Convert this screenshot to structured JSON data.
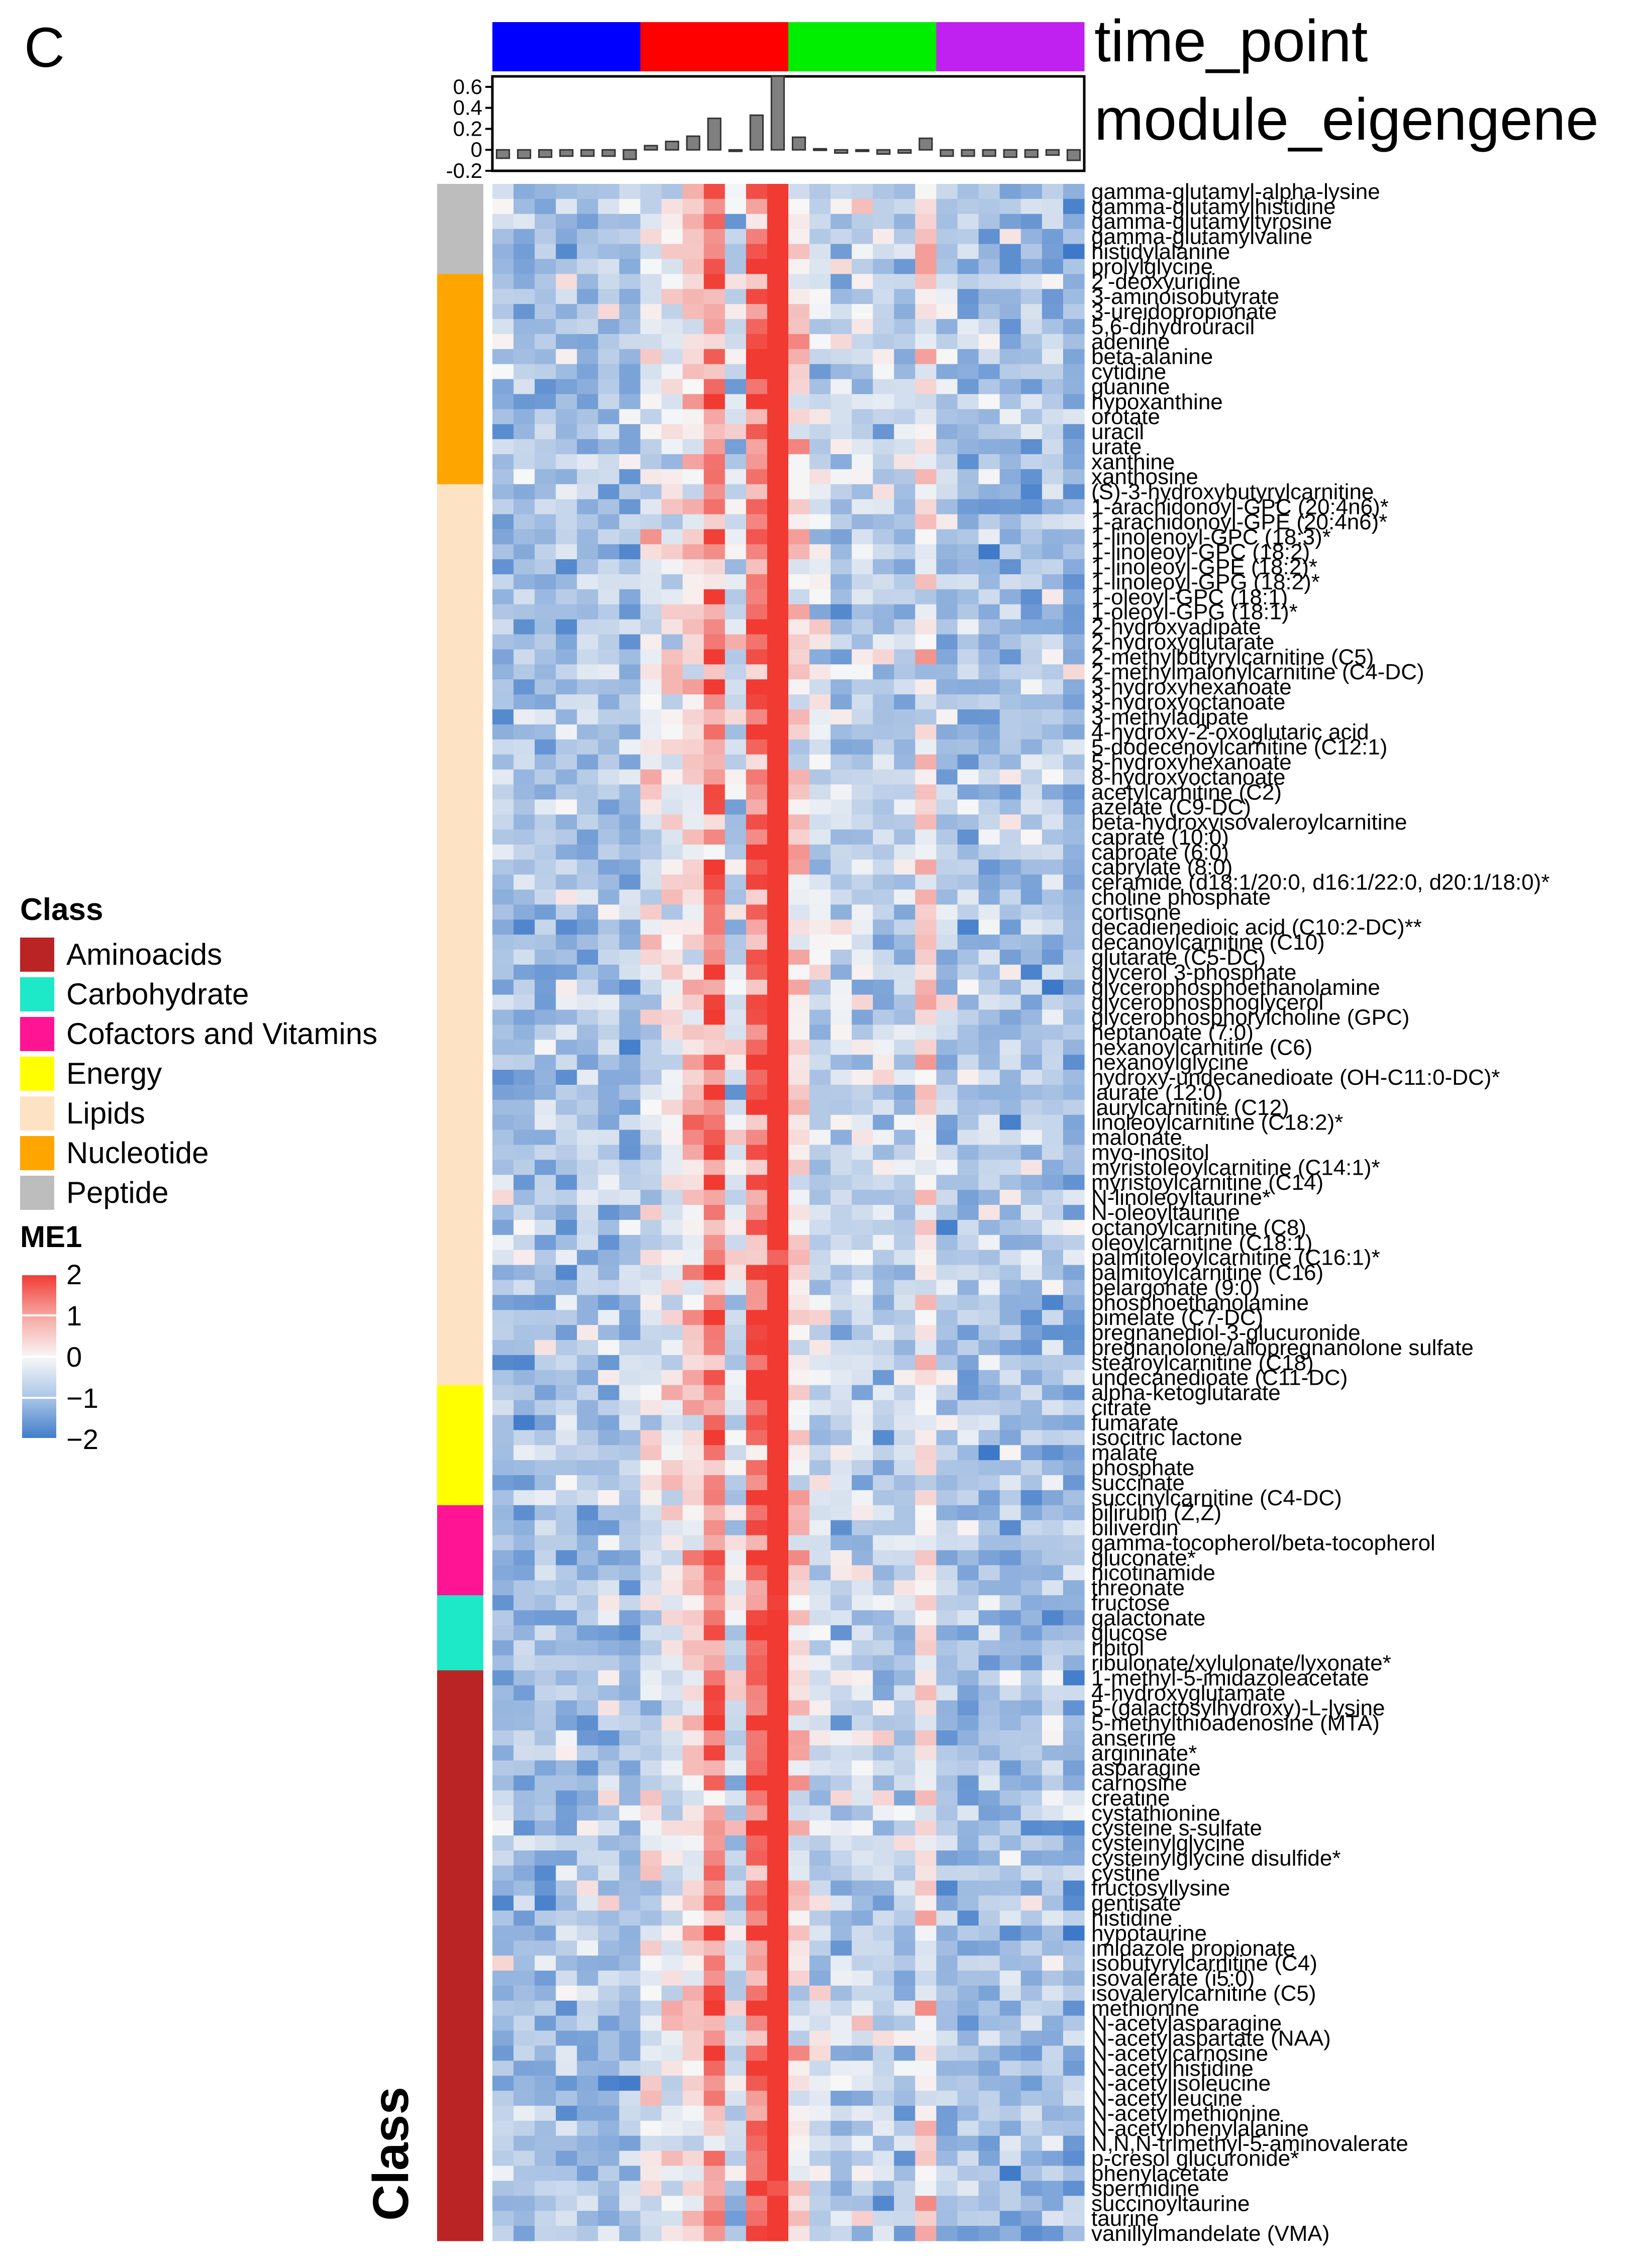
{
  "panel_label": "C",
  "legend": {
    "title": "Class",
    "items": [
      {
        "label": "Aminoacids",
        "color": "#bb2424"
      },
      {
        "label": "Carbohydrate",
        "color": "#1de8c8"
      },
      {
        "label": "Cofactors and Vitamins",
        "color": "#ff1493"
      },
      {
        "label": "Energy",
        "color": "#ffff00"
      },
      {
        "label": "Lipids",
        "color": "#fde3c4"
      },
      {
        "label": "Nucleotide",
        "color": "#ffa500"
      },
      {
        "label": "Peptide",
        "color": "#bdbdbd"
      }
    ],
    "scale_title": "ME1",
    "scale_ticks": [
      "2",
      "1",
      "0",
      "−1",
      "−2"
    ]
  },
  "chart_data": {
    "type": "heatmap",
    "column_annotation": {
      "label": "time_point",
      "groups": [
        {
          "color": "#0000ff",
          "n": 7
        },
        {
          "color": "#ff0000",
          "n": 7
        },
        {
          "color": "#00ee00",
          "n": 7
        },
        {
          "color": "#c020f0",
          "n": 7
        }
      ]
    },
    "eigengene": {
      "label": "module_eigengene",
      "ticks": [
        "0.6",
        "0.4",
        "0.2",
        "0",
        "-0.2"
      ],
      "ylim": [
        -0.2,
        0.7
      ],
      "values": [
        -0.08,
        -0.08,
        -0.07,
        -0.06,
        -0.06,
        -0.06,
        -0.09,
        0.04,
        0.08,
        0.13,
        0.3,
        0.0,
        0.33,
        0.7,
        0.12,
        0.01,
        -0.03,
        0.0,
        -0.04,
        -0.03,
        0.11,
        -0.06,
        -0.06,
        -0.06,
        -0.07,
        -0.07,
        -0.05,
        -0.1
      ]
    },
    "row_annotation_label": "Class",
    "color_scale": {
      "min": -2,
      "max": 2,
      "low": "#3d79c8",
      "mid": "#f7f7f7",
      "high": "#f03a32"
    },
    "row_groups": [
      {
        "class": "Peptide",
        "rows": [
          "gamma-glutamyl-alpha-lysine",
          "gamma-glutamylhistidine",
          "gamma-glutamyltyrosine",
          "gamma-glutamylvaline",
          "histidylalanine",
          "prolylglycine"
        ]
      },
      {
        "class": "Nucleotide",
        "rows": [
          "2'-deoxyuridine",
          "3-aminoisobutyrate",
          "3-ureidopropionate",
          "5,6-dihydrouracil",
          "adenine",
          "beta-alanine",
          "cytidine",
          "guanine",
          "hypoxanthine",
          "orotate",
          "uracil",
          "urate",
          "xanthine",
          "xanthosine"
        ]
      },
      {
        "class": "Lipids",
        "rows": [
          "(S)-3-hydroxybutyrylcarnitine",
          "1-arachidonoyl-GPC (20:4n6)*",
          "1-arachidonoyl-GPE (20:4n6)*",
          "1-linolenoyl-GPC (18:3)*",
          "1-linoleoyl-GPC (18:2)",
          "1-linoleoyl-GPE (18:2)*",
          "1-linoleoyl-GPG (18:2)*",
          "1-oleoyl-GPC (18:1)",
          "1-oleoyl-GPG (18:1)*",
          "2-hydroxyadipate",
          "2-hydroxyglutarate",
          "2-methylbutyrylcarnitine (C5)",
          "2-methylmalonylcarnitine (C4-DC)",
          "3-hydroxyhexanoate",
          "3-hydroxyoctanoate",
          "3-methyladipate",
          "4-hydroxy-2-oxoglutaric acid",
          "5-dodecenoylcarnitine (C12:1)",
          "5-hydroxyhexanoate",
          "8-hydroxyoctanoate",
          "acetylcarnitine (C2)",
          "azelate (C9-DC)",
          "beta-hydroxyisovaleroylcarnitine",
          "caprate (10:0)",
          "caproate (6:0)",
          "caprylate (8:0)",
          "ceramide (d18:1/20:0, d16:1/22:0, d20:1/18:0)*",
          "choline phosphate",
          "cortisone",
          "decadienedioic acid (C10:2-DC)**",
          "decanoylcarnitine (C10)",
          "glutarate (C5-DC)",
          "glycerol 3-phosphate",
          "glycerophosphoethanolamine",
          "glycerophosphoglycerol",
          "glycerophosphorylcholine (GPC)",
          "heptanoate (7:0)",
          "hexanoylcarnitine (C6)",
          "hexanoylglycine",
          "hydroxy-undecanedioate (OH-C11:0-DC)*",
          "laurate (12:0)",
          "laurylcarnitine (C12)",
          "linoleoylcarnitine (C18:2)*",
          "malonate",
          "myo-inositol",
          "myristoleoylcarnitine (C14:1)*",
          "myristoylcarnitine (C14)",
          "N-linoleoyltaurine*",
          "N-oleoyltaurine",
          "octanoylcarnitine (C8)",
          "oleoylcarnitine (C18:1)",
          "palmitoleoylcarnitine (C16:1)*",
          "palmitoylcarnitine (C16)",
          "pelargonate (9:0)",
          "phosphoethanolamine",
          "pimelate (C7-DC)",
          "pregnanediol-3-glucuronide",
          "pregnanolone/allopregnanolone sulfate",
          "stearoylcarnitine (C18)",
          "undecanedioate (C11-DC)"
        ]
      },
      {
        "class": "Energy",
        "rows": [
          "alpha-ketoglutarate",
          "citrate",
          "fumarate",
          "isocitric lactone",
          "malate",
          "phosphate",
          "succinate",
          "succinylcarnitine (C4-DC)"
        ]
      },
      {
        "class": "Cofactors and Vitamins",
        "rows": [
          "bilirubin (Z,Z)",
          "biliverdin",
          "gamma-tocopherol/beta-tocopherol",
          "gluconate*",
          "nicotinamide",
          "threonate"
        ]
      },
      {
        "class": "Carbohydrate",
        "rows": [
          "fructose",
          "galactonate",
          "glucose",
          "ribitol",
          "ribulonate/xylulonate/lyxonate*"
        ]
      },
      {
        "class": "Aminoacids",
        "rows": [
          "1-methyl-5-imidazoleacetate",
          "4-hydroxyglutamate",
          "5-(galactosylhydroxy)-L-lysine",
          "5-methylthioadenosine (MTA)",
          "anserine",
          "argininate*",
          "asparagine",
          "carnosine",
          "creatine",
          "cystathionine",
          "cysteine s-sulfate",
          "cysteinylglycine",
          "cysteinylglycine disulfide*",
          "cystine",
          "fructosyllysine",
          "gentisate",
          "histidine",
          "hypotaurine",
          "imidazole propionate",
          "isobutyrylcarnitine (C4)",
          "isovalerate (i5:0)",
          "isovalerylcarnitine (C5)",
          "methionine",
          "N-acetylasparagine",
          "N-acetylaspartate (NAA)",
          "N-acetylcarnosine",
          "N-acetylhistidine",
          "N-acetylisoleucine",
          "N-acetylleucine",
          "N-acetylmethionine",
          "N-acetylphenylalanine",
          "N,N,N-trimethyl-5-aminovalerate",
          "p-cresol glucuronide*",
          "phenylacetate",
          "spermidine",
          "succinoyltaurine",
          "taurine",
          "vanillylmandelate (VMA)"
        ]
      }
    ]
  }
}
